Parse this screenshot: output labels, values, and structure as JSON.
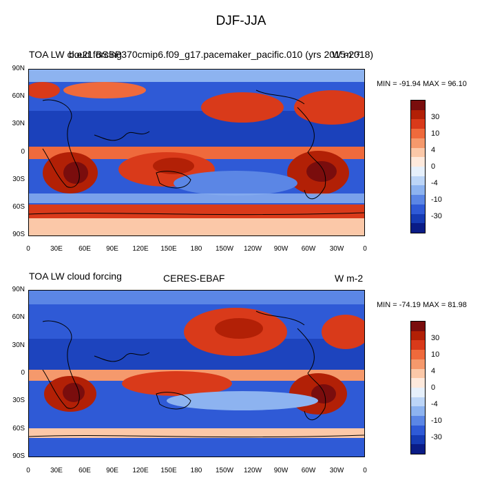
{
  "title": "DJF-JJA",
  "panels": [
    {
      "left_text": "TOA LW cloud forcing",
      "center_text": "b.e21.BSSP370cmip6.f09_g17.pacemaker_pacific.010 (yrs 2015-2018)",
      "right_text": "W m⁻²",
      "minmax": "MIN = -91.94   MAX =  96.10"
    },
    {
      "left_text": "TOA LW cloud forcing",
      "center_text": "CERES-EBAF",
      "right_text": "W m-2",
      "minmax": "MIN = -74.19   MAX =  81.98"
    }
  ],
  "lat_labels": [
    "90N",
    "60N",
    "30N",
    "0",
    "30S",
    "60S",
    "90S"
  ],
  "lon_labels": [
    "0",
    "30E",
    "60E",
    "90E",
    "120E",
    "150E",
    "180",
    "150W",
    "120W",
    "90W",
    "60W",
    "30W",
    "0"
  ],
  "colorbar": {
    "labels": [
      "30",
      "10",
      "4",
      "0",
      "-4",
      "-10",
      "-30"
    ],
    "colors": [
      "#7a0d0d",
      "#b22006",
      "#d93a1a",
      "#ef6a3c",
      "#f5996c",
      "#fbc8a8",
      "#fde9dc",
      "#e6f0fb",
      "#bcd5f7",
      "#8db3f0",
      "#5b86e5",
      "#2f5ad6",
      "#163bb4",
      "#0a1c86"
    ]
  },
  "colors": {
    "ocean_blue": "#2f5ad6",
    "positive_red": "#d93a1a"
  }
}
